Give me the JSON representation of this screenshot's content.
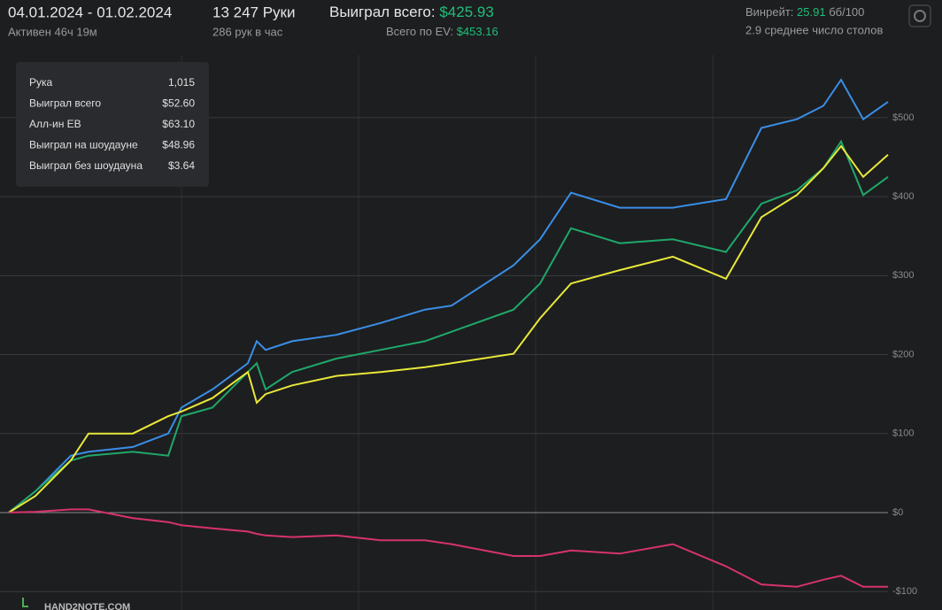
{
  "header": {
    "date_range": "04.01.2024 - 01.02.2024",
    "active": "Активен 46ч 19м",
    "hands": "13 247 Руки",
    "hands_per_hour": "286 рук в час",
    "won_label": "Выиграл всего:",
    "won_value": "$425.93",
    "ev_label": "Всего по EV:",
    "ev_value": "$453.16",
    "winrate_label": "Винрейт:",
    "winrate_value": "25.91",
    "winrate_unit": "бб/100",
    "tables": "2.9 среднее число столов"
  },
  "tooltip": {
    "rows": [
      [
        "Рука",
        "1,015"
      ],
      [
        "Выиграл всего",
        "$52.60"
      ],
      [
        "Алл-ин EВ",
        "$63.10"
      ],
      [
        "Выиграл на шоудауне",
        "$48.96"
      ],
      [
        "Выиграл без шоудауна",
        "$3.64"
      ]
    ]
  },
  "logo": "HAND2NOTE.COM",
  "chart_data": {
    "type": "line",
    "x": [
      0,
      400,
      934,
      1201,
      1868,
      2401,
      2601,
      3068,
      3602,
      3735,
      3869,
      4269,
      4936,
      5603,
      6270,
      6670,
      7604,
      8004,
      8471,
      9205,
      10005,
      10806,
      11339,
      11873,
      12273,
      12540,
      12873,
      13247
    ],
    "xlim": [
      0,
      13247
    ],
    "series": [
      {
        "name": "Выиграл на шоудауне",
        "color": "#3a8ee6",
        "values": [
          0,
          27,
          72,
          77,
          83,
          100,
          133,
          156,
          189,
          217,
          206,
          217,
          225,
          240,
          257,
          262,
          313,
          346,
          405,
          386,
          386,
          397,
          487,
          498,
          515,
          548,
          498,
          520
        ]
      },
      {
        "name": "Выиграл всего",
        "color": "#1fa86a",
        "values": [
          0,
          27,
          66,
          72,
          77,
          72,
          122,
          133,
          178,
          189,
          156,
          178,
          195,
          206,
          217,
          229,
          257,
          290,
          360,
          341,
          346,
          330,
          391,
          408,
          436,
          470,
          402,
          425
        ]
      },
      {
        "name": "Алл-ин EВ",
        "color": "#e8e83a",
        "values": [
          0,
          21,
          66,
          100,
          100,
          122,
          128,
          145,
          178,
          139,
          150,
          161,
          173,
          178,
          184,
          189,
          201,
          246,
          290,
          307,
          324,
          296,
          374,
          402,
          436,
          464,
          425,
          453
        ]
      },
      {
        "name": "Выиграл без шоудауна",
        "color": "#d6336c",
        "values": [
          0,
          1,
          4,
          4,
          -7,
          -12,
          -16,
          -20,
          -24,
          -27,
          -29,
          -31,
          -29,
          -35,
          -35,
          -40,
          -55,
          -55,
          -48,
          -52,
          -40,
          -68,
          -91,
          -94,
          -85,
          -80,
          -94,
          -94
        ]
      }
    ],
    "ylim": [
      -120,
      575
    ],
    "yticks": [
      {
        "value": -100,
        "label": "-$100"
      },
      {
        "value": 0,
        "label": "$0"
      },
      {
        "value": 100,
        "label": "$100"
      },
      {
        "value": 200,
        "label": "$200"
      },
      {
        "value": 300,
        "label": "$300"
      },
      {
        "value": 400,
        "label": "$400"
      },
      {
        "value": 500,
        "label": "$500"
      }
    ],
    "grid": true
  }
}
